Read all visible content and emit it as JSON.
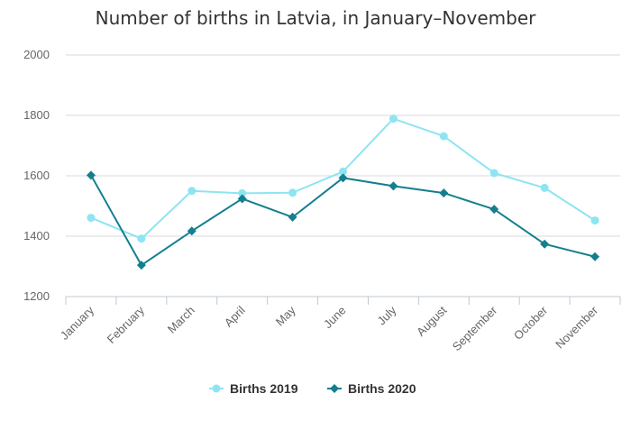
{
  "chart_data": {
    "type": "line",
    "title": "Number of births in Latvia, in January–November",
    "xlabel": "",
    "ylabel": "",
    "categories": [
      "January",
      "February",
      "March",
      "April",
      "May",
      "June",
      "July",
      "August",
      "September",
      "October",
      "November"
    ],
    "ylim": [
      1200,
      2000
    ],
    "yticks": [
      1200,
      1400,
      1600,
      1800,
      2000
    ],
    "grid": true,
    "legend": "bottom-center",
    "series": [
      {
        "name": "Births 2019",
        "color": "#8ee4f2",
        "marker": "circle",
        "values": [
          1461,
          1392,
          1550,
          1542,
          1544,
          1614,
          1789,
          1731,
          1609,
          1560,
          1452
        ]
      },
      {
        "name": "Births 2020",
        "color": "#137f8f",
        "marker": "diamond",
        "values": [
          1602,
          1304,
          1417,
          1524,
          1463,
          1593,
          1566,
          1543,
          1489,
          1374,
          1332
        ]
      }
    ]
  }
}
